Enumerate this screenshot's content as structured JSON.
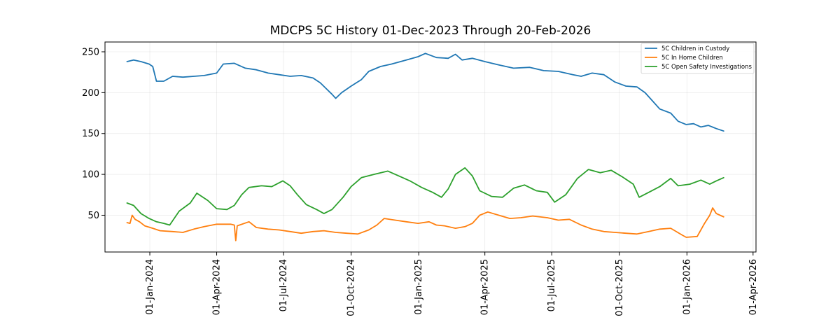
{
  "chart_data": {
    "type": "line",
    "title": "MDCPS 5C History 01-Dec-2023 Through 20-Feb-2026",
    "xlabel": "",
    "ylabel": "",
    "x_axis": {
      "min": "2023-11-01",
      "max": "2026-04-05",
      "ticks": [
        {
          "date": "2024-01-01",
          "label": "01-Jan-2024"
        },
        {
          "date": "2024-04-01",
          "label": "01-Apr-2024"
        },
        {
          "date": "2024-07-01",
          "label": "01-Jul-2024"
        },
        {
          "date": "2024-10-01",
          "label": "01-Oct-2024"
        },
        {
          "date": "2025-01-01",
          "label": "01-Jan-2025"
        },
        {
          "date": "2025-04-01",
          "label": "01-Apr-2025"
        },
        {
          "date": "2025-07-01",
          "label": "01-Jul-2025"
        },
        {
          "date": "2025-10-01",
          "label": "01-Oct-2025"
        },
        {
          "date": "2026-01-01",
          "label": "01-Jan-2026"
        },
        {
          "date": "2026-04-01",
          "label": "01-Apr-2026"
        }
      ]
    },
    "y_axis": {
      "ylim": [
        5,
        262
      ],
      "ticks": [
        {
          "value": 50,
          "label": "50"
        },
        {
          "value": 100,
          "label": "100"
        },
        {
          "value": 150,
          "label": "150"
        },
        {
          "value": 200,
          "label": "200"
        },
        {
          "value": 250,
          "label": "250"
        }
      ]
    },
    "grid": true,
    "legend_position": "top-right",
    "series": [
      {
        "name": "5C Children in Custody",
        "color": "#1f77b4",
        "points": [
          [
            "2023-12-01",
            238
          ],
          [
            "2023-12-10",
            240
          ],
          [
            "2023-12-20",
            238
          ],
          [
            "2023-12-31",
            235
          ],
          [
            "2024-01-05",
            232
          ],
          [
            "2024-01-10",
            214
          ],
          [
            "2024-01-20",
            214
          ],
          [
            "2024-02-01",
            220
          ],
          [
            "2024-02-15",
            219
          ],
          [
            "2024-03-01",
            220
          ],
          [
            "2024-03-15",
            221
          ],
          [
            "2024-04-01",
            224
          ],
          [
            "2024-04-10",
            235
          ],
          [
            "2024-04-25",
            236
          ],
          [
            "2024-05-10",
            230
          ],
          [
            "2024-05-25",
            228
          ],
          [
            "2024-06-10",
            224
          ],
          [
            "2024-06-25",
            222
          ],
          [
            "2024-07-10",
            220
          ],
          [
            "2024-07-25",
            221
          ],
          [
            "2024-08-10",
            218
          ],
          [
            "2024-08-20",
            212
          ],
          [
            "2024-08-28",
            205
          ],
          [
            "2024-09-05",
            198
          ],
          [
            "2024-09-10",
            193
          ],
          [
            "2024-09-18",
            200
          ],
          [
            "2024-10-01",
            208
          ],
          [
            "2024-10-15",
            216
          ],
          [
            "2024-10-25",
            226
          ],
          [
            "2024-11-10",
            232
          ],
          [
            "2024-11-25",
            235
          ],
          [
            "2024-12-15",
            240
          ],
          [
            "2024-12-31",
            244
          ],
          [
            "2025-01-10",
            248
          ],
          [
            "2025-01-25",
            243
          ],
          [
            "2025-02-10",
            242
          ],
          [
            "2025-02-20",
            247
          ],
          [
            "2025-03-01",
            240
          ],
          [
            "2025-03-15",
            242
          ],
          [
            "2025-04-01",
            238
          ],
          [
            "2025-04-20",
            234
          ],
          [
            "2025-05-10",
            230
          ],
          [
            "2025-06-01",
            231
          ],
          [
            "2025-06-20",
            227
          ],
          [
            "2025-07-10",
            226
          ],
          [
            "2025-07-30",
            222
          ],
          [
            "2025-08-10",
            220
          ],
          [
            "2025-08-25",
            224
          ],
          [
            "2025-09-10",
            222
          ],
          [
            "2025-09-25",
            213
          ],
          [
            "2025-10-10",
            208
          ],
          [
            "2025-10-25",
            207
          ],
          [
            "2025-11-05",
            200
          ],
          [
            "2025-11-15",
            190
          ],
          [
            "2025-11-25",
            180
          ],
          [
            "2025-12-10",
            175
          ],
          [
            "2025-12-20",
            165
          ],
          [
            "2025-12-31",
            161
          ],
          [
            "2026-01-10",
            162
          ],
          [
            "2026-01-20",
            158
          ],
          [
            "2026-01-30",
            160
          ],
          [
            "2026-02-10",
            156
          ],
          [
            "2026-02-20",
            153
          ]
        ]
      },
      {
        "name": "5C In Home Children",
        "color": "#ff7f0e",
        "points": [
          [
            "2023-12-01",
            41
          ],
          [
            "2023-12-05",
            40
          ],
          [
            "2023-12-08",
            50
          ],
          [
            "2023-12-12",
            45
          ],
          [
            "2023-12-18",
            42
          ],
          [
            "2023-12-25",
            37
          ],
          [
            "2024-01-05",
            34
          ],
          [
            "2024-01-15",
            31
          ],
          [
            "2024-02-01",
            30
          ],
          [
            "2024-02-15",
            29
          ],
          [
            "2024-03-01",
            33
          ],
          [
            "2024-03-15",
            36
          ],
          [
            "2024-04-01",
            39
          ],
          [
            "2024-04-20",
            39
          ],
          [
            "2024-04-25",
            38
          ],
          [
            "2024-04-27",
            19
          ],
          [
            "2024-04-29",
            37
          ],
          [
            "2024-05-15",
            42
          ],
          [
            "2024-05-25",
            35
          ],
          [
            "2024-06-10",
            33
          ],
          [
            "2024-06-25",
            32
          ],
          [
            "2024-07-10",
            30
          ],
          [
            "2024-07-25",
            28
          ],
          [
            "2024-08-10",
            30
          ],
          [
            "2024-08-25",
            31
          ],
          [
            "2024-09-10",
            29
          ],
          [
            "2024-09-25",
            28
          ],
          [
            "2024-10-10",
            27
          ],
          [
            "2024-10-25",
            32
          ],
          [
            "2024-11-05",
            38
          ],
          [
            "2024-11-15",
            46
          ],
          [
            "2024-11-30",
            44
          ],
          [
            "2024-12-15",
            42
          ],
          [
            "2024-12-31",
            40
          ],
          [
            "2025-01-15",
            42
          ],
          [
            "2025-01-25",
            38
          ],
          [
            "2025-02-05",
            37
          ],
          [
            "2025-02-20",
            34
          ],
          [
            "2025-03-05",
            36
          ],
          [
            "2025-03-15",
            40
          ],
          [
            "2025-03-25",
            50
          ],
          [
            "2025-04-05",
            54
          ],
          [
            "2025-04-20",
            50
          ],
          [
            "2025-05-05",
            46
          ],
          [
            "2025-05-20",
            47
          ],
          [
            "2025-06-05",
            49
          ],
          [
            "2025-06-25",
            47
          ],
          [
            "2025-07-10",
            44
          ],
          [
            "2025-07-25",
            45
          ],
          [
            "2025-08-10",
            38
          ],
          [
            "2025-08-25",
            33
          ],
          [
            "2025-09-10",
            30
          ],
          [
            "2025-09-25",
            29
          ],
          [
            "2025-10-10",
            28
          ],
          [
            "2025-10-25",
            27
          ],
          [
            "2025-11-10",
            30
          ],
          [
            "2025-11-25",
            33
          ],
          [
            "2025-12-10",
            34
          ],
          [
            "2025-12-25",
            26
          ],
          [
            "2025-12-31",
            23
          ],
          [
            "2026-01-15",
            24
          ],
          [
            "2026-01-25",
            40
          ],
          [
            "2026-02-01",
            50
          ],
          [
            "2026-02-05",
            59
          ],
          [
            "2026-02-10",
            52
          ],
          [
            "2026-02-15",
            50
          ],
          [
            "2026-02-20",
            48
          ]
        ]
      },
      {
        "name": "5C Open Safety Investigations",
        "color": "#2ca02c",
        "points": [
          [
            "2023-12-01",
            65
          ],
          [
            "2023-12-10",
            62
          ],
          [
            "2023-12-20",
            52
          ],
          [
            "2023-12-31",
            46
          ],
          [
            "2024-01-10",
            42
          ],
          [
            "2024-01-20",
            40
          ],
          [
            "2024-01-28",
            38
          ],
          [
            "2024-02-10",
            55
          ],
          [
            "2024-02-25",
            65
          ],
          [
            "2024-03-05",
            77
          ],
          [
            "2024-03-20",
            68
          ],
          [
            "2024-04-01",
            58
          ],
          [
            "2024-04-15",
            57
          ],
          [
            "2024-04-25",
            62
          ],
          [
            "2024-05-05",
            75
          ],
          [
            "2024-05-15",
            84
          ],
          [
            "2024-06-01",
            86
          ],
          [
            "2024-06-15",
            85
          ],
          [
            "2024-06-30",
            92
          ],
          [
            "2024-07-10",
            86
          ],
          [
            "2024-07-20",
            75
          ],
          [
            "2024-08-01",
            63
          ],
          [
            "2024-08-15",
            57
          ],
          [
            "2024-08-25",
            52
          ],
          [
            "2024-09-05",
            57
          ],
          [
            "2024-09-20",
            72
          ],
          [
            "2024-10-01",
            85
          ],
          [
            "2024-10-15",
            96
          ],
          [
            "2024-11-01",
            100
          ],
          [
            "2024-11-20",
            104
          ],
          [
            "2024-12-05",
            98
          ],
          [
            "2024-12-20",
            92
          ],
          [
            "2025-01-05",
            84
          ],
          [
            "2025-01-20",
            78
          ],
          [
            "2025-02-01",
            72
          ],
          [
            "2025-02-10",
            82
          ],
          [
            "2025-02-20",
            100
          ],
          [
            "2025-03-05",
            108
          ],
          [
            "2025-03-15",
            98
          ],
          [
            "2025-03-25",
            80
          ],
          [
            "2025-04-10",
            73
          ],
          [
            "2025-04-25",
            72
          ],
          [
            "2025-05-10",
            83
          ],
          [
            "2025-05-25",
            87
          ],
          [
            "2025-06-10",
            80
          ],
          [
            "2025-06-25",
            78
          ],
          [
            "2025-07-05",
            66
          ],
          [
            "2025-07-20",
            75
          ],
          [
            "2025-08-05",
            95
          ],
          [
            "2025-08-20",
            106
          ],
          [
            "2025-09-05",
            102
          ],
          [
            "2025-09-20",
            105
          ],
          [
            "2025-10-05",
            97
          ],
          [
            "2025-10-20",
            88
          ],
          [
            "2025-10-28",
            72
          ],
          [
            "2025-11-10",
            78
          ],
          [
            "2025-11-25",
            85
          ],
          [
            "2025-12-10",
            95
          ],
          [
            "2025-12-20",
            86
          ],
          [
            "2026-01-05",
            88
          ],
          [
            "2026-01-20",
            93
          ],
          [
            "2026-02-01",
            88
          ],
          [
            "2026-02-10",
            92
          ],
          [
            "2026-02-20",
            96
          ]
        ]
      }
    ]
  }
}
